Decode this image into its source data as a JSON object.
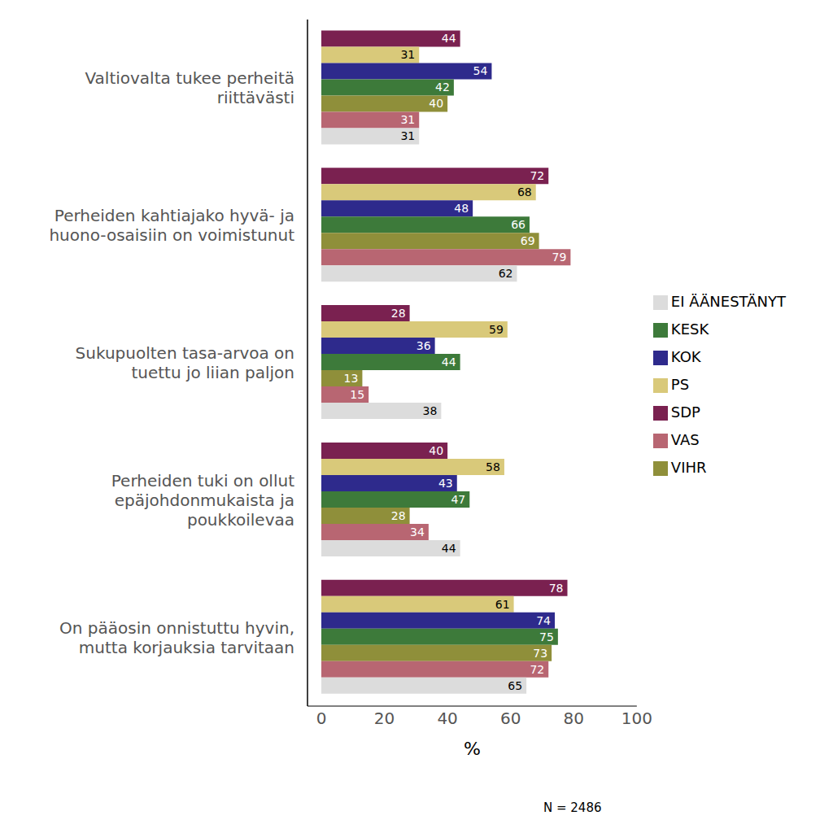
{
  "chart_data": {
    "type": "bar",
    "orientation": "horizontal",
    "categories": [
      "Valtiovalta tukee perheitä riittävästi",
      "Perheiden kahtiajako hyvä- ja huono-osaisiin on voimistunut",
      "Sukupuolten tasa-arvoa on tuettu jo liian paljon",
      "Perheiden tuki on ollut epäjohdonmukaista ja poukkoilevaa",
      "On pääosin onnistuttu hyvin, mutta korjauksia tarvitaan"
    ],
    "series": [
      {
        "name": "SDP",
        "color": "#7a2150",
        "values": [
          44,
          72,
          28,
          40,
          78
        ]
      },
      {
        "name": "PS",
        "color": "#d9c97a",
        "values": [
          31,
          68,
          59,
          58,
          61
        ]
      },
      {
        "name": "KOK",
        "color": "#2e2a8c",
        "values": [
          54,
          48,
          36,
          43,
          74
        ]
      },
      {
        "name": "KESK",
        "color": "#3d7a3a",
        "values": [
          42,
          66,
          44,
          47,
          75
        ]
      },
      {
        "name": "VIHR",
        "color": "#8f8f3a",
        "values": [
          40,
          69,
          13,
          28,
          73
        ]
      },
      {
        "name": "VAS",
        "color": "#b86672",
        "values": [
          31,
          79,
          15,
          34,
          72
        ]
      },
      {
        "name": "EI ÄÄNESTÄNYT",
        "color": "#dcdcdc",
        "values": [
          31,
          62,
          38,
          44,
          65
        ]
      }
    ],
    "xlim": [
      0,
      100
    ],
    "xticks": [
      0,
      20,
      40,
      60,
      80,
      100
    ],
    "x_label": "%",
    "data_labels": true,
    "grid": false,
    "legend": "right",
    "annotation": "N = 2486"
  }
}
